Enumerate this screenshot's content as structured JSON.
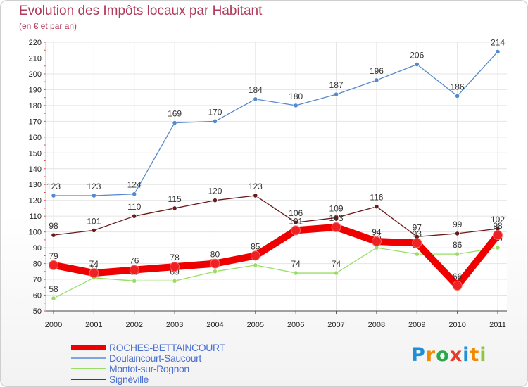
{
  "header": {
    "title": "Evolution des Impôts locaux par Habitant",
    "subtitle": "(en € et par an)"
  },
  "chart_data": {
    "type": "line",
    "x": [
      "2000",
      "2001",
      "2002",
      "2003",
      "2004",
      "2005",
      "2006",
      "2007",
      "2008",
      "2009",
      "2010",
      "2011"
    ],
    "ylim": [
      50,
      220
    ],
    "yticks": [
      50,
      60,
      70,
      80,
      90,
      100,
      110,
      120,
      130,
      140,
      150,
      160,
      170,
      180,
      190,
      200,
      210,
      220
    ],
    "grid": true,
    "series": [
      {
        "name": "Signéville",
        "color": "#6b1a1a",
        "values": [
          98,
          101,
          110,
          115,
          120,
          123,
          106,
          109,
          116,
          97,
          99,
          102
        ],
        "labels": [
          "98",
          "101",
          "110",
          "115",
          "120",
          "123",
          "106",
          "109",
          "116",
          "97",
          "99",
          "102"
        ]
      },
      {
        "name": "Montot-sur-Rognon",
        "color": "#99dd66",
        "values": [
          58,
          71,
          69,
          69,
          75,
          79,
          74,
          74,
          90,
          86,
          86,
          90
        ],
        "labels": [
          "58",
          "71",
          "69",
          "69",
          "75",
          "79",
          "74",
          "74",
          "90",
          "86",
          "86",
          "90"
        ]
      },
      {
        "name": "Doulaincourt-Saucourt",
        "color": "#5588cc",
        "values": [
          123,
          123,
          124,
          169,
          170,
          184,
          180,
          187,
          196,
          206,
          186,
          214
        ],
        "labels": [
          "123",
          "123",
          "124",
          "169",
          "170",
          "184",
          "180",
          "187",
          "196",
          "206",
          "186",
          "214"
        ]
      },
      {
        "name": "ROCHES-BETTAINCOURT",
        "color": "#ee0000",
        "values": [
          79,
          74,
          76,
          78,
          80,
          85,
          101,
          103,
          94,
          93,
          66,
          98
        ],
        "labels": [
          "79",
          "74",
          "76",
          "78",
          "80",
          "85",
          "101",
          "103",
          "94",
          "93",
          "66",
          "98"
        ]
      }
    ],
    "legend": [
      {
        "name": "ROCHES-BETTAINCOURT",
        "color": "#ee0000",
        "thickness": 8
      },
      {
        "name": "Doulaincourt-Saucourt",
        "color": "#7aa8dd",
        "thickness": 2
      },
      {
        "name": "Montot-sur-Rognon",
        "color": "#99dd66",
        "thickness": 2
      },
      {
        "name": "Signéville",
        "color": "#7a2a2a",
        "thickness": 2
      }
    ]
  },
  "brand": {
    "letters": [
      "P",
      "r",
      "o",
      "x",
      "i",
      "t",
      "i"
    ],
    "colors": [
      "#1e8fd6",
      "#f08a00",
      "#2aa84a",
      "#e63a2a",
      "#1e8fd6",
      "#f08a00",
      "#8cc63f"
    ]
  }
}
